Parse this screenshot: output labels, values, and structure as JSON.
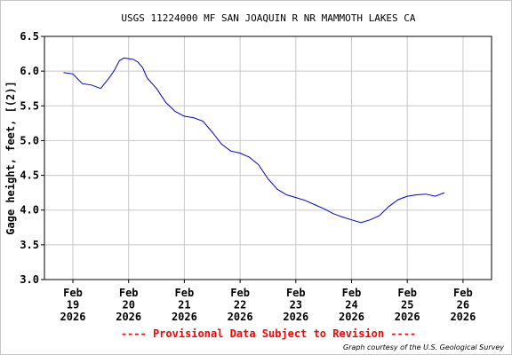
{
  "chart_data": {
    "type": "line",
    "title": "USGS 11224000 MF SAN JOAQUIN R NR MAMMOTH LAKES CA",
    "ylabel": "Gage height, feet, [(2)]",
    "xlabel": "",
    "ylim": [
      3.0,
      6.5
    ],
    "yticks": [
      "3.0",
      "3.5",
      "4.0",
      "4.5",
      "5.0",
      "5.5",
      "6.0",
      "6.5"
    ],
    "xticks": [
      {
        "month": "Feb",
        "day": "19",
        "year": "2026"
      },
      {
        "month": "Feb",
        "day": "20",
        "year": "2026"
      },
      {
        "month": "Feb",
        "day": "21",
        "year": "2026"
      },
      {
        "month": "Feb",
        "day": "22",
        "year": "2026"
      },
      {
        "month": "Feb",
        "day": "23",
        "year": "2026"
      },
      {
        "month": "Feb",
        "day": "24",
        "year": "2026"
      },
      {
        "month": "Feb",
        "day": "25",
        "year": "2026"
      },
      {
        "month": "Feb",
        "day": "26",
        "year": "2026"
      }
    ],
    "grid": true,
    "line_color": "#0000cc",
    "series": [
      {
        "name": "",
        "x": [
          "2026-02-18 20:00",
          "2026-02-19 00:00",
          "2026-02-19 04:00",
          "2026-02-19 08:00",
          "2026-02-19 12:00",
          "2026-02-19 16:00",
          "2026-02-19 18:00",
          "2026-02-19 20:00",
          "2026-02-19 22:00",
          "2026-02-20 00:00",
          "2026-02-20 02:00",
          "2026-02-20 04:00",
          "2026-02-20 06:00",
          "2026-02-20 08:00",
          "2026-02-20 12:00",
          "2026-02-20 16:00",
          "2026-02-20 20:00",
          "2026-02-21 00:00",
          "2026-02-21 04:00",
          "2026-02-21 08:00",
          "2026-02-21 12:00",
          "2026-02-21 16:00",
          "2026-02-21 20:00",
          "2026-02-22 00:00",
          "2026-02-22 04:00",
          "2026-02-22 08:00",
          "2026-02-22 12:00",
          "2026-02-22 16:00",
          "2026-02-22 20:00",
          "2026-02-23 00:00",
          "2026-02-23 04:00",
          "2026-02-23 08:00",
          "2026-02-23 12:00",
          "2026-02-23 16:00",
          "2026-02-23 20:00",
          "2026-02-24 00:00",
          "2026-02-24 04:00",
          "2026-02-24 08:00",
          "2026-02-24 12:00",
          "2026-02-24 16:00",
          "2026-02-24 20:00",
          "2026-02-25 00:00",
          "2026-02-25 04:00",
          "2026-02-25 08:00",
          "2026-02-25 12:00",
          "2026-02-25 16:00"
        ],
        "values": [
          5.98,
          5.96,
          5.82,
          5.8,
          5.75,
          5.92,
          6.02,
          6.15,
          6.19,
          6.18,
          6.17,
          6.13,
          6.05,
          5.9,
          5.75,
          5.55,
          5.42,
          5.35,
          5.33,
          5.28,
          5.12,
          4.95,
          4.85,
          4.82,
          4.76,
          4.65,
          4.45,
          4.3,
          4.22,
          4.18,
          4.14,
          4.08,
          4.02,
          3.95,
          3.9,
          3.86,
          3.82,
          3.86,
          3.92,
          4.05,
          4.15,
          4.2,
          4.22,
          4.23,
          4.2,
          4.25
        ]
      }
    ]
  },
  "footer": {
    "provisional": "---- Provisional Data Subject to Revision ----",
    "credit": "Graph courtesy of the U.S. Geological Survey",
    "provisional_color": "#ff0000"
  }
}
